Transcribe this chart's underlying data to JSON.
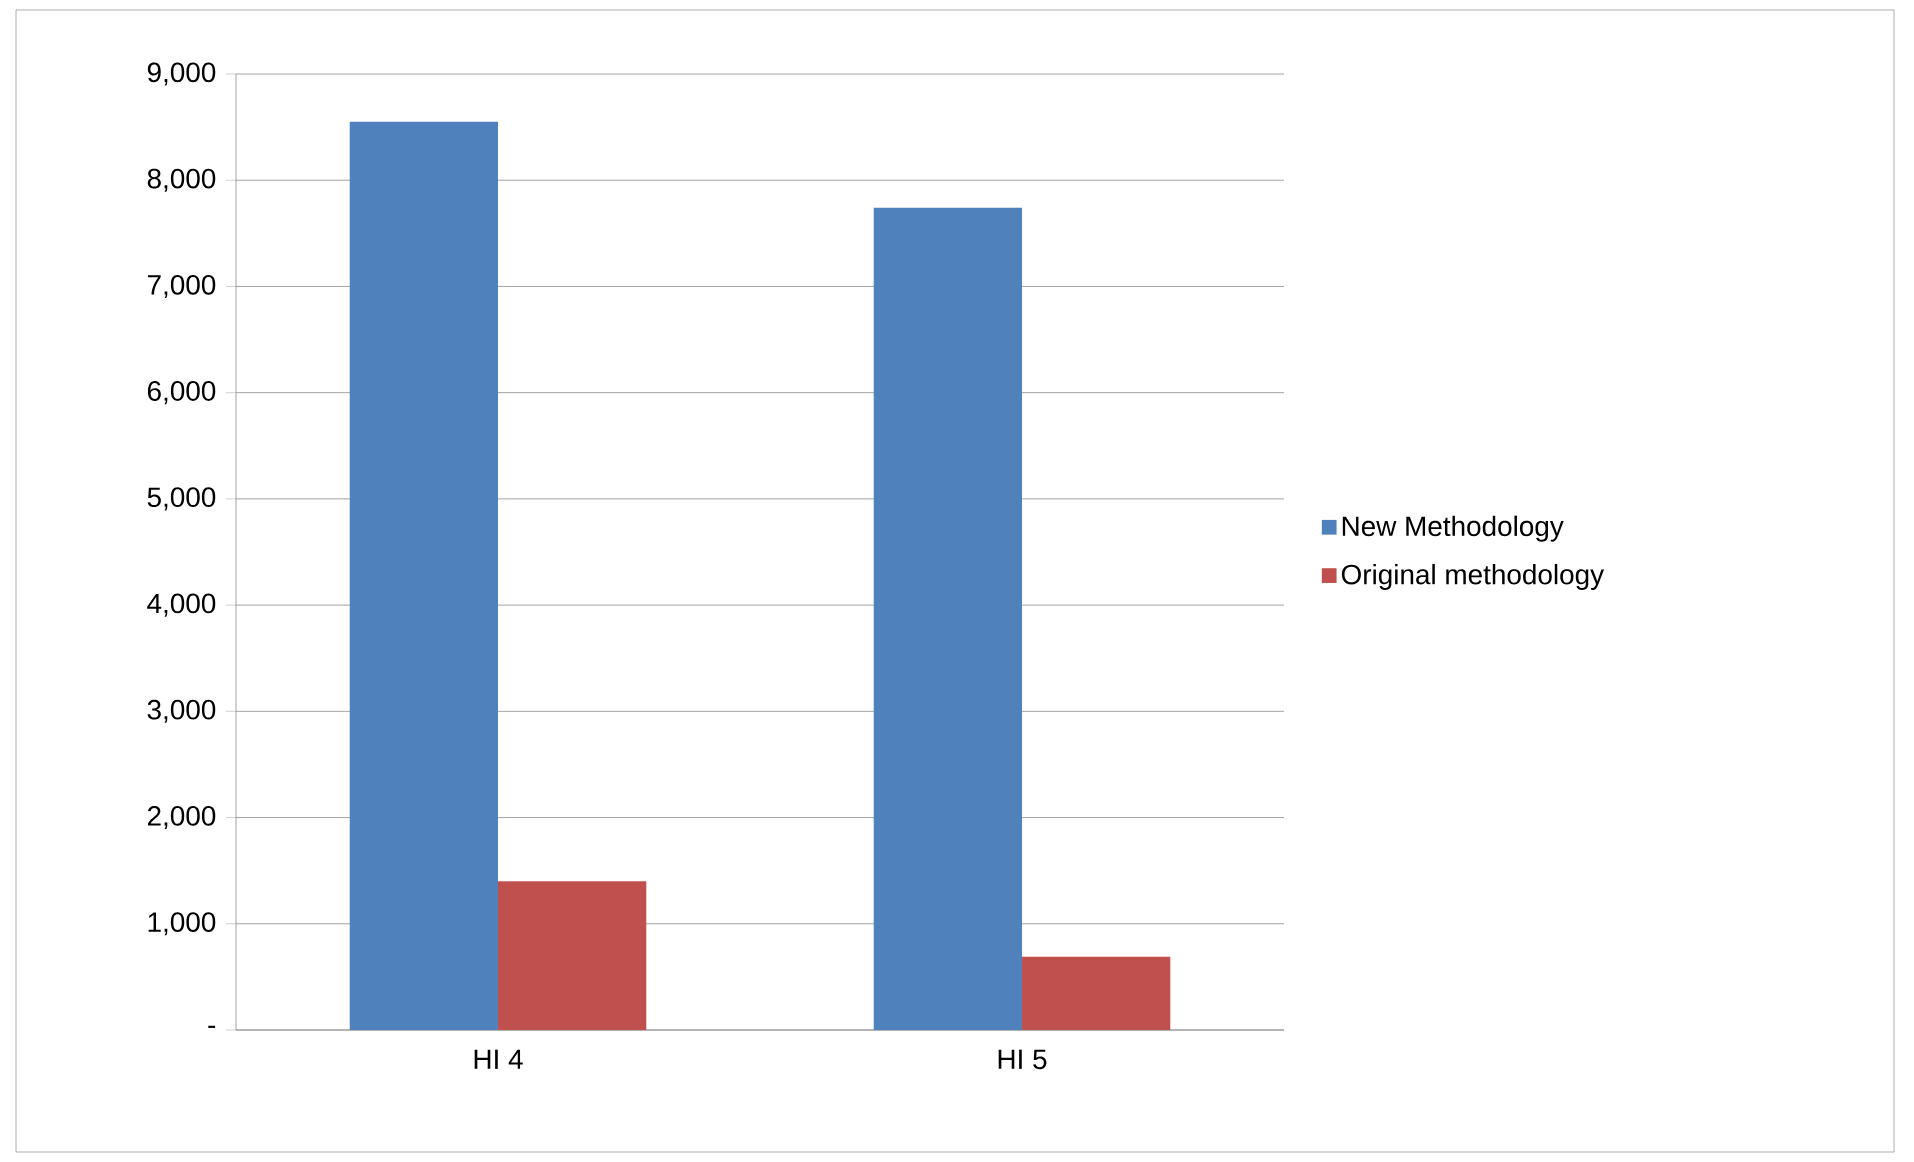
{
  "chart_data": {
    "type": "bar",
    "categories": [
      "HI 4",
      "HI 5"
    ],
    "series": [
      {
        "name": "New Methodology",
        "color": "#4f81bd",
        "values": [
          8550,
          7740
        ]
      },
      {
        "name": "Original methodology",
        "color": "#c0504d",
        "values": [
          1400,
          690
        ]
      }
    ],
    "ylim": [
      0,
      9000
    ],
    "yticks": [
      {
        "value": 0,
        "label": "-"
      },
      {
        "value": 1000,
        "label": "1,000"
      },
      {
        "value": 2000,
        "label": "2,000"
      },
      {
        "value": 3000,
        "label": "3,000"
      },
      {
        "value": 4000,
        "label": "4,000"
      },
      {
        "value": 5000,
        "label": "5,000"
      },
      {
        "value": 6000,
        "label": "6,000"
      },
      {
        "value": 7000,
        "label": "7,000"
      },
      {
        "value": 8000,
        "label": "8,000"
      },
      {
        "value": 9000,
        "label": "9,000"
      }
    ],
    "grid": "y",
    "legend": "right"
  }
}
